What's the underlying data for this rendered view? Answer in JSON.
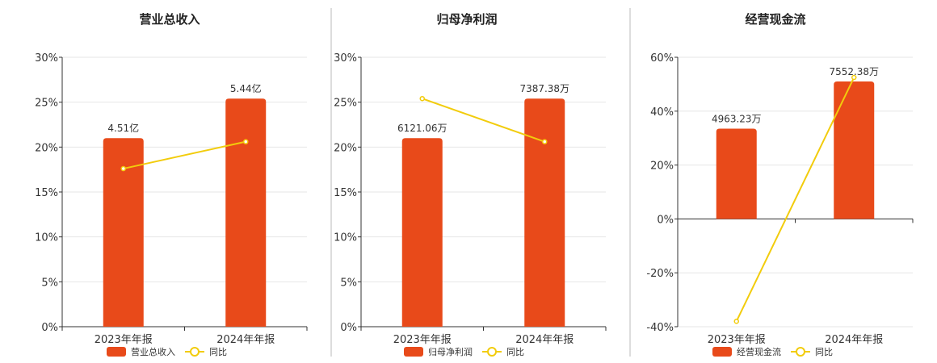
{
  "colors": {
    "bar": "#E84A1A",
    "line": "#F2CC0C",
    "grid": "#E6E6E6",
    "axis": "#333333",
    "divider": "#BBBBBB"
  },
  "chart_data": [
    {
      "type": "bar",
      "title": "营业总收入",
      "categories": [
        "2023年年报",
        "2024年年报"
      ],
      "ylim": [
        0,
        30
      ],
      "yticks": [
        0,
        5,
        10,
        15,
        20,
        25,
        30
      ],
      "tick_suffix": "%",
      "series": [
        {
          "name": "营业总收入",
          "kind": "bar",
          "values": [
            21,
            25.4
          ],
          "labels": [
            "4.51亿",
            "5.44亿"
          ]
        },
        {
          "name": "同比",
          "kind": "line",
          "values": [
            17.6,
            20.6
          ]
        }
      ],
      "grid": true,
      "legend": "bottom"
    },
    {
      "type": "bar",
      "title": "归母净利润",
      "categories": [
        "2023年年报",
        "2024年年报"
      ],
      "ylim": [
        0,
        30
      ],
      "yticks": [
        0,
        5,
        10,
        15,
        20,
        25,
        30
      ],
      "tick_suffix": "%",
      "series": [
        {
          "name": "归母净利润",
          "kind": "bar",
          "values": [
            21,
            25.4
          ],
          "labels": [
            "6121.06万",
            "7387.38万"
          ]
        },
        {
          "name": "同比",
          "kind": "line",
          "values": [
            25.4,
            20.6
          ]
        }
      ],
      "grid": true,
      "legend": "bottom"
    },
    {
      "type": "bar",
      "title": "经营现金流",
      "categories": [
        "2023年年报",
        "2024年年报"
      ],
      "ylim": [
        -40,
        60
      ],
      "yticks": [
        -40,
        -20,
        0,
        20,
        40,
        60
      ],
      "tick_suffix": "%",
      "series": [
        {
          "name": "经营现金流",
          "kind": "bar",
          "values": [
            33.5,
            51
          ],
          "labels": [
            "4963.23万",
            "7552.38万"
          ]
        },
        {
          "name": "同比",
          "kind": "line",
          "values": [
            -38,
            52.5
          ]
        }
      ],
      "grid": true,
      "legend": "bottom"
    }
  ]
}
